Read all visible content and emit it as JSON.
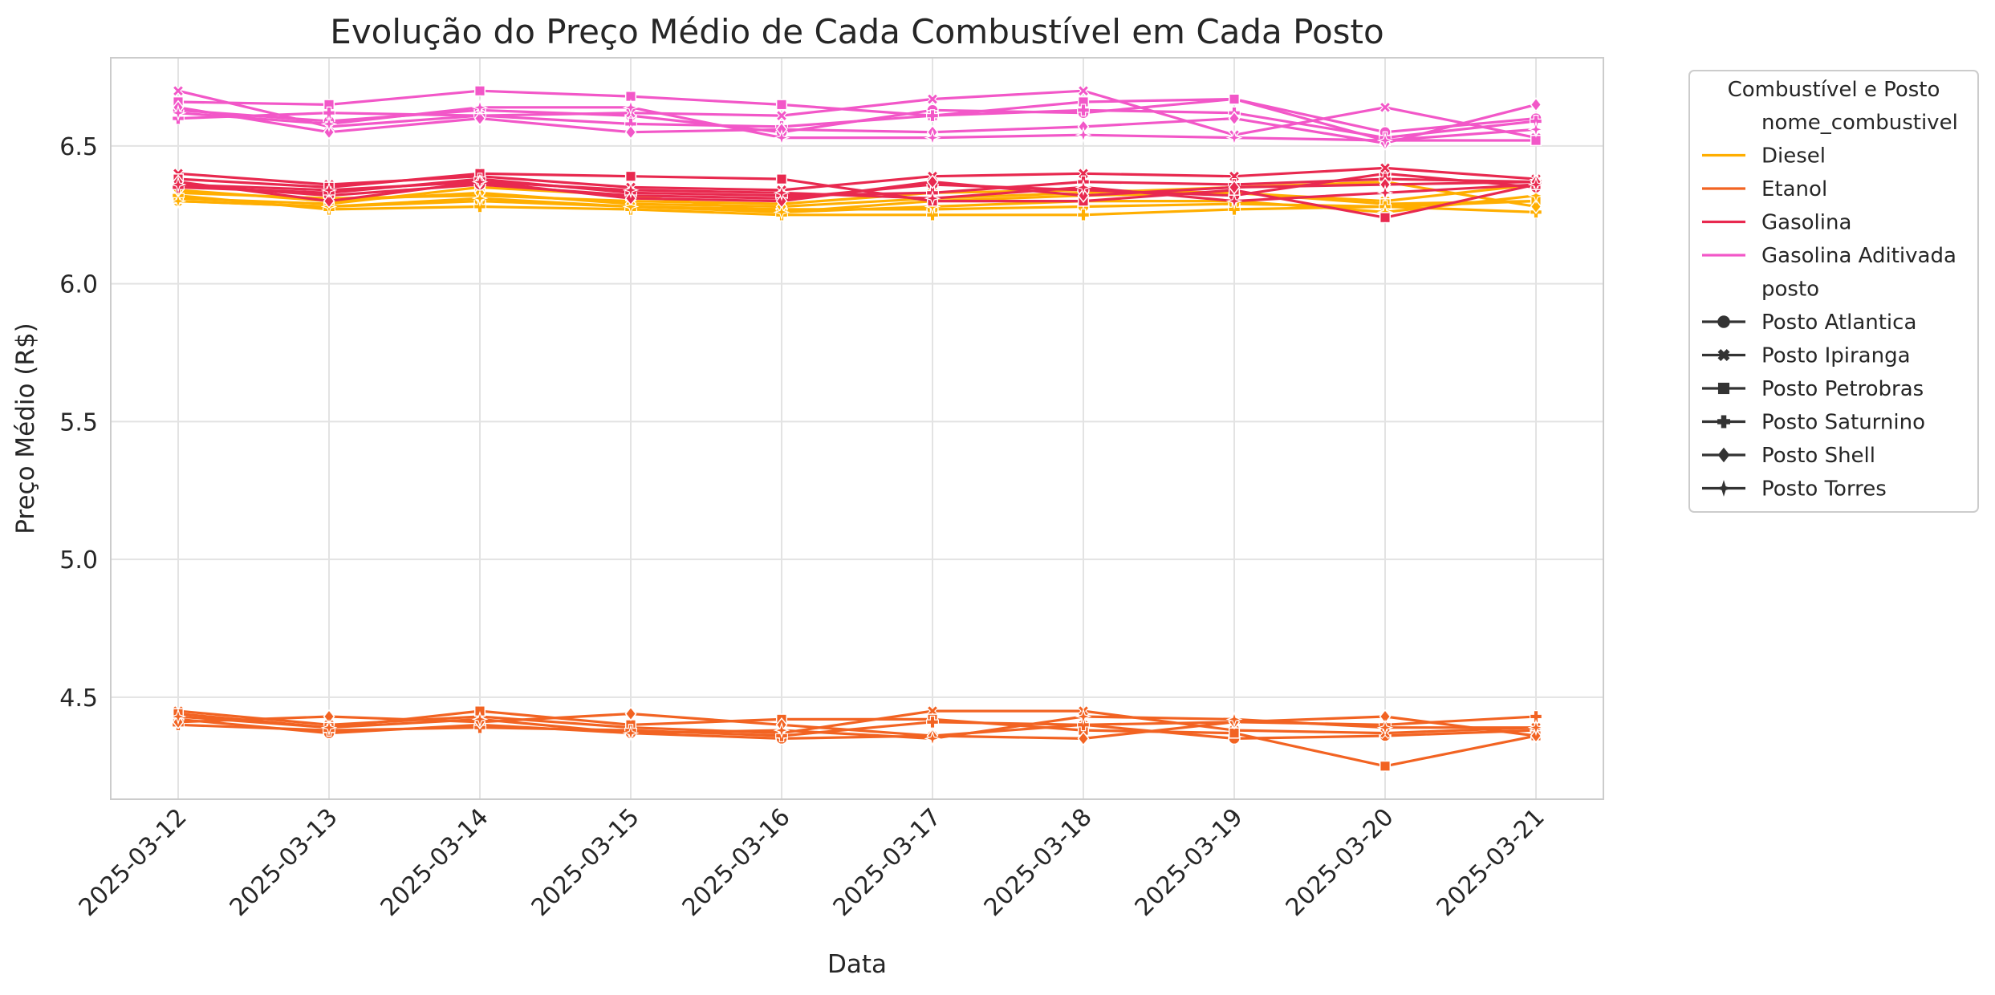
{
  "chart_data": {
    "type": "line",
    "title": "Evolução do Preço Médio de Cada Combustível em Cada Posto",
    "xlabel": "Data",
    "ylabel": "Preço Médio (R$)",
    "x": [
      "2025-03-12",
      "2025-03-13",
      "2025-03-14",
      "2025-03-15",
      "2025-03-16",
      "2025-03-17",
      "2025-03-18",
      "2025-03-19",
      "2025-03-20",
      "2025-03-21"
    ],
    "ylim": [
      4.13,
      6.82
    ],
    "yticks": [
      4.5,
      5.0,
      5.5,
      6.0,
      6.5
    ],
    "ytick_labels": [
      "4.5",
      "5.0",
      "5.5",
      "6.0",
      "6.5"
    ],
    "grid": true,
    "legend": {
      "title": "Combustível e Posto",
      "placement": "outside-right",
      "hue_header": "nome_combustivel",
      "style_header": "posto",
      "fuels": [
        {
          "name": "Diesel",
          "color": "#ffae00"
        },
        {
          "name": "Etanol",
          "color": "#f26322"
        },
        {
          "name": "Gasolina",
          "color": "#e8294f"
        },
        {
          "name": "Gasolina Aditivada",
          "color": "#f257c8"
        }
      ],
      "postos": [
        {
          "name": "Posto Atlantica",
          "marker": "circle"
        },
        {
          "name": "Posto Ipiranga",
          "marker": "x"
        },
        {
          "name": "Posto Petrobras",
          "marker": "square"
        },
        {
          "name": "Posto Saturnino",
          "marker": "plus"
        },
        {
          "name": "Posto Shell",
          "marker": "diamond"
        },
        {
          "name": "Posto Torres",
          "marker": "star"
        }
      ]
    },
    "series": [
      {
        "fuel": "Diesel",
        "posto": "Posto Atlantica",
        "values": [
          6.3,
          6.28,
          6.3,
          6.28,
          6.27,
          6.27,
          6.28,
          6.29,
          6.28,
          6.3
        ]
      },
      {
        "fuel": "Diesel",
        "posto": "Posto Ipiranga",
        "values": [
          6.33,
          6.31,
          6.32,
          6.3,
          6.29,
          6.33,
          6.34,
          6.33,
          6.3,
          6.36
        ]
      },
      {
        "fuel": "Diesel",
        "posto": "Posto Petrobras",
        "values": [
          6.31,
          6.29,
          6.35,
          6.32,
          6.26,
          6.3,
          6.32,
          6.33,
          6.29,
          6.3
        ]
      },
      {
        "fuel": "Diesel",
        "posto": "Posto Saturnino",
        "values": [
          6.32,
          6.27,
          6.28,
          6.27,
          6.25,
          6.25,
          6.25,
          6.27,
          6.28,
          6.26
        ]
      },
      {
        "fuel": "Diesel",
        "posto": "Posto Shell",
        "values": [
          6.34,
          6.3,
          6.33,
          6.29,
          6.28,
          6.31,
          6.33,
          6.35,
          6.37,
          6.28
        ]
      },
      {
        "fuel": "Diesel",
        "posto": "Posto Torres",
        "values": [
          6.3,
          6.28,
          6.31,
          6.28,
          6.26,
          6.28,
          6.3,
          6.3,
          6.26,
          6.32
        ]
      },
      {
        "fuel": "Etanol",
        "posto": "Posto Atlantica",
        "values": [
          4.42,
          4.37,
          4.4,
          4.37,
          4.35,
          4.36,
          4.4,
          4.35,
          4.36,
          4.38
        ]
      },
      {
        "fuel": "Etanol",
        "posto": "Posto Ipiranga",
        "values": [
          4.45,
          4.4,
          4.43,
          4.39,
          4.37,
          4.45,
          4.45,
          4.38,
          4.37,
          4.39
        ]
      },
      {
        "fuel": "Etanol",
        "posto": "Posto Petrobras",
        "values": [
          4.44,
          4.39,
          4.45,
          4.4,
          4.42,
          4.42,
          4.38,
          4.37,
          4.25,
          4.36
        ]
      },
      {
        "fuel": "Etanol",
        "posto": "Posto Saturnino",
        "values": [
          4.4,
          4.38,
          4.39,
          4.38,
          4.36,
          4.41,
          4.4,
          4.41,
          4.4,
          4.43
        ]
      },
      {
        "fuel": "Etanol",
        "posto": "Posto Shell",
        "values": [
          4.41,
          4.43,
          4.41,
          4.44,
          4.4,
          4.36,
          4.35,
          4.41,
          4.43,
          4.36
        ]
      },
      {
        "fuel": "Etanol",
        "posto": "Posto Torres",
        "values": [
          4.43,
          4.39,
          4.42,
          4.37,
          4.38,
          4.35,
          4.43,
          4.42,
          4.39,
          4.39
        ]
      },
      {
        "fuel": "Gasolina",
        "posto": "Posto Atlantica",
        "values": [
          6.36,
          6.32,
          6.36,
          6.32,
          6.31,
          6.36,
          6.34,
          6.32,
          6.4,
          6.35
        ]
      },
      {
        "fuel": "Gasolina",
        "posto": "Posto Ipiranga",
        "values": [
          6.4,
          6.36,
          6.39,
          6.35,
          6.34,
          6.39,
          6.4,
          6.39,
          6.42,
          6.38
        ]
      },
      {
        "fuel": "Gasolina",
        "posto": "Posto Petrobras",
        "values": [
          6.38,
          6.35,
          6.4,
          6.39,
          6.38,
          6.3,
          6.3,
          6.34,
          6.24,
          6.36
        ]
      },
      {
        "fuel": "Gasolina",
        "posto": "Posto Saturnino",
        "values": [
          6.35,
          6.33,
          6.38,
          6.33,
          6.32,
          6.33,
          6.37,
          6.36,
          6.38,
          6.37
        ]
      },
      {
        "fuel": "Gasolina",
        "posto": "Posto Shell",
        "values": [
          6.37,
          6.3,
          6.37,
          6.31,
          6.3,
          6.37,
          6.32,
          6.35,
          6.36,
          6.37
        ]
      },
      {
        "fuel": "Gasolina",
        "posto": "Posto Torres",
        "values": [
          6.36,
          6.34,
          6.37,
          6.34,
          6.33,
          6.31,
          6.35,
          6.3,
          6.33,
          6.36
        ]
      },
      {
        "fuel": "Gasolina Aditivada",
        "posto": "Posto Atlantica",
        "values": [
          6.63,
          6.59,
          6.63,
          6.61,
          6.55,
          6.63,
          6.62,
          6.67,
          6.55,
          6.6
        ]
      },
      {
        "fuel": "Gasolina Aditivada",
        "posto": "Posto Ipiranga",
        "values": [
          6.7,
          6.57,
          6.61,
          6.62,
          6.61,
          6.67,
          6.7,
          6.54,
          6.64,
          6.53
        ]
      },
      {
        "fuel": "Gasolina Aditivada",
        "posto": "Posto Petrobras",
        "values": [
          6.66,
          6.65,
          6.7,
          6.68,
          6.65,
          6.61,
          6.66,
          6.67,
          6.52,
          6.52
        ]
      },
      {
        "fuel": "Gasolina Aditivada",
        "posto": "Posto Saturnino",
        "values": [
          6.6,
          6.62,
          6.61,
          6.58,
          6.57,
          6.61,
          6.63,
          6.62,
          6.53,
          6.59
        ]
      },
      {
        "fuel": "Gasolina Aditivada",
        "posto": "Posto Shell",
        "values": [
          6.64,
          6.55,
          6.6,
          6.55,
          6.56,
          6.55,
          6.57,
          6.6,
          6.51,
          6.65
        ]
      },
      {
        "fuel": "Gasolina Aditivada",
        "posto": "Posto Torres",
        "values": [
          6.62,
          6.58,
          6.64,
          6.64,
          6.53,
          6.53,
          6.54,
          6.53,
          6.52,
          6.56
        ]
      }
    ]
  }
}
